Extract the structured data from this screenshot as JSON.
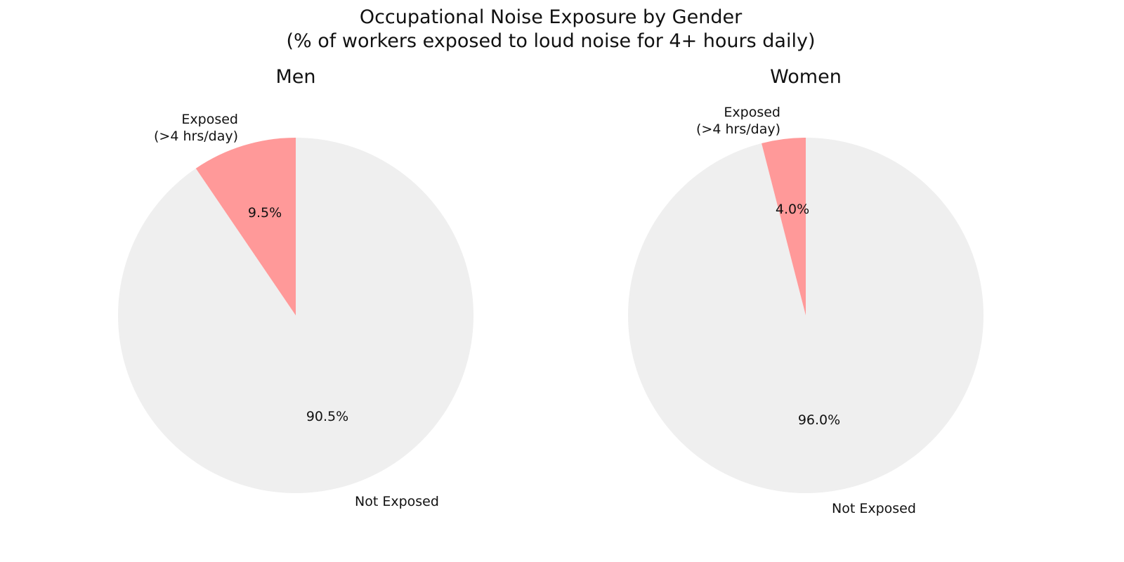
{
  "title": "Occupational Noise Exposure by Gender",
  "subtitle": "(% of workers exposed to loud noise for 4+ hours daily)",
  "colors": {
    "exposed": "#ff9999",
    "not_exposed": "#efefef"
  },
  "charts": [
    {
      "name": "Men",
      "slices": [
        {
          "label_line1": "Exposed",
          "label_line2": "(>4 hrs/day)",
          "value": 9.5,
          "pct": "9.5%"
        },
        {
          "label_line1": "Not Exposed",
          "label_line2": "",
          "value": 90.5,
          "pct": "90.5%"
        }
      ]
    },
    {
      "name": "Women",
      "slices": [
        {
          "label_line1": "Exposed",
          "label_line2": "(>4 hrs/day)",
          "value": 4.0,
          "pct": "4.0%"
        },
        {
          "label_line1": "Not Exposed",
          "label_line2": "",
          "value": 96.0,
          "pct": "96.0%"
        }
      ]
    }
  ],
  "chart_data": [
    {
      "type": "pie",
      "title": "Men",
      "suptitle": "Occupational Noise Exposure by Gender\n(% of workers exposed to loud noise for 4+ hours daily)",
      "categories": [
        "Exposed (>4 hrs/day)",
        "Not Exposed"
      ],
      "values": [
        9.5,
        90.5
      ],
      "colors": [
        "#ff9999",
        "#efefef"
      ],
      "start_angle": 90,
      "direction": "counterclockwise",
      "autopct": "%.1f%%"
    },
    {
      "type": "pie",
      "title": "Women",
      "categories": [
        "Exposed (>4 hrs/day)",
        "Not Exposed"
      ],
      "values": [
        4.0,
        96.0
      ],
      "colors": [
        "#ff9999",
        "#efefef"
      ],
      "start_angle": 90,
      "direction": "counterclockwise",
      "autopct": "%.1f%%"
    }
  ]
}
